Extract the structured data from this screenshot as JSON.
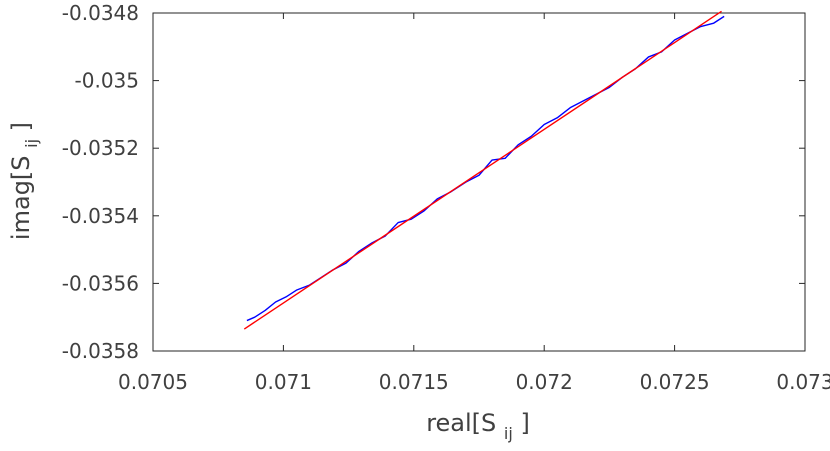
{
  "chart_data": {
    "type": "line",
    "title": "",
    "xlabel": {
      "main": "real[S",
      "sub": "ij",
      "close": "]"
    },
    "ylabel": {
      "main": "imag[S",
      "sub": "ij",
      "close": "]"
    },
    "xlim": [
      0.0705,
      0.073
    ],
    "ylim": [
      -0.0358,
      -0.0348
    ],
    "xticks": [
      0.0705,
      0.071,
      0.0715,
      0.072,
      0.0725,
      0.073
    ],
    "yticks": [
      -0.0358,
      -0.0356,
      -0.0354,
      -0.0352,
      -0.035,
      -0.0348
    ],
    "xtick_labels": [
      "0.0705",
      "0.071",
      "0.0715",
      "0.072",
      "0.0725",
      "0.073"
    ],
    "ytick_labels": [
      "-0.0358",
      "-0.0356",
      "-0.0354",
      "-0.0352",
      "-0.035",
      "-0.0348"
    ],
    "grid": false,
    "series": [
      {
        "color": "#0000ff",
        "x": [
          0.07086,
          0.07089,
          0.07093,
          0.07097,
          0.07101,
          0.07105,
          0.0711,
          0.07114,
          0.07119,
          0.07124,
          0.07129,
          0.07134,
          0.07139,
          0.07144,
          0.07149,
          0.07154,
          0.07159,
          0.07164,
          0.0717,
          0.07175,
          0.0718,
          0.07185,
          0.0719,
          0.07195,
          0.072,
          0.07205,
          0.0721,
          0.07215,
          0.0722,
          0.07225,
          0.0723,
          0.07235,
          0.0724,
          0.07245,
          0.0725,
          0.07255,
          0.0726,
          0.07265,
          0.07269
        ],
        "y": [
          -0.03571,
          -0.0357,
          -0.03568,
          -0.035655,
          -0.03564,
          -0.03562,
          -0.035605,
          -0.035585,
          -0.03556,
          -0.03554,
          -0.035505,
          -0.03548,
          -0.03546,
          -0.03542,
          -0.03541,
          -0.035385,
          -0.03535,
          -0.03533,
          -0.0353,
          -0.03528,
          -0.035235,
          -0.03523,
          -0.03519,
          -0.035165,
          -0.03513,
          -0.03511,
          -0.03508,
          -0.03506,
          -0.03504,
          -0.03502,
          -0.03499,
          -0.034965,
          -0.03493,
          -0.034915,
          -0.03488,
          -0.03486,
          -0.03484,
          -0.03483,
          -0.03481
        ]
      },
      {
        "color": "#ff0000",
        "x": [
          0.07085,
          0.07268
        ],
        "y": [
          -0.035735,
          -0.034795
        ]
      }
    ]
  }
}
